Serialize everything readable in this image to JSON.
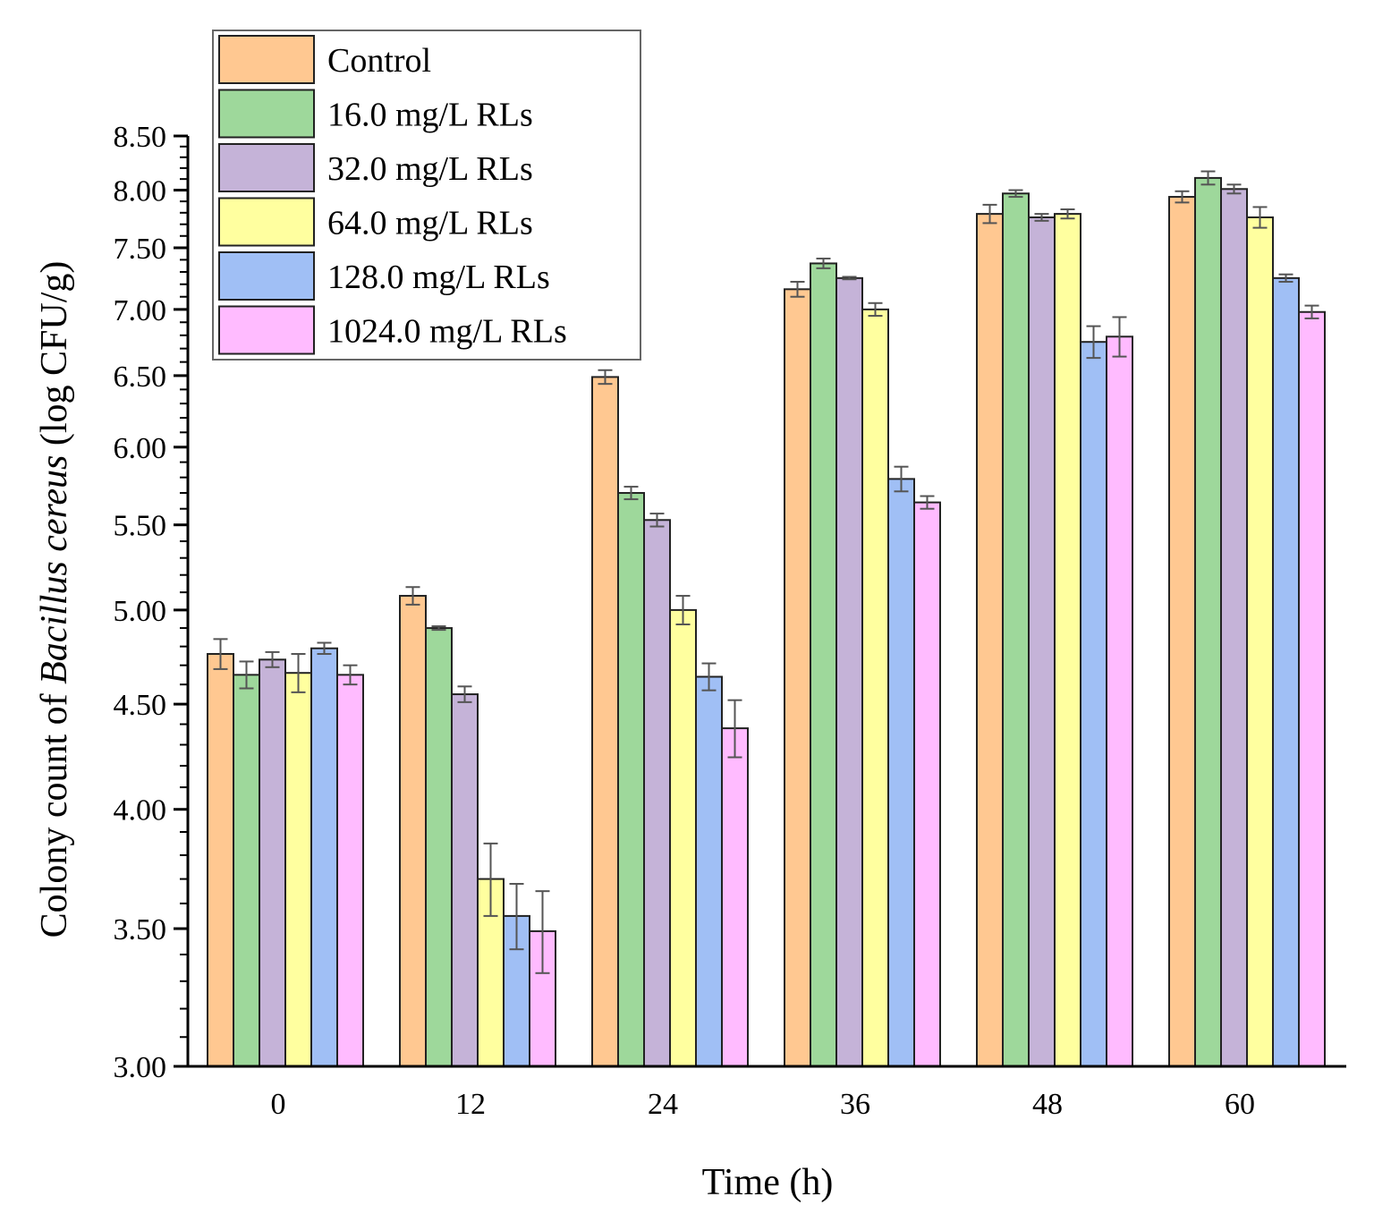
{
  "chart_data": {
    "type": "bar",
    "xlabel": "Time (h)",
    "ylabel_parts": [
      "Colony count of ",
      "Bacillus cereus",
      " (log CFU/g)"
    ],
    "categories": [
      "0",
      "12",
      "24",
      "36",
      "48",
      "60"
    ],
    "y_ticks": [
      "3.00",
      "3.50",
      "4.00",
      "4.50",
      "5.00",
      "5.50",
      "6.00",
      "6.50",
      "7.00",
      "7.50",
      "8.00",
      "8.50"
    ],
    "ylim": [
      3.0,
      8.5
    ],
    "y_scale": "log",
    "legend_position": "top-left",
    "grid": false,
    "series": [
      {
        "name": "Control",
        "color": "#FFC891",
        "values": [
          4.76,
          5.08,
          6.49,
          7.16,
          7.79,
          7.94
        ],
        "errors": [
          0.08,
          0.05,
          0.05,
          0.06,
          0.08,
          0.05
        ]
      },
      {
        "name": "16.0 mg/L RLs",
        "color": "#9ED89B",
        "values": [
          4.65,
          4.9,
          5.7,
          7.37,
          7.97,
          8.11
        ],
        "errors": [
          0.07,
          0.01,
          0.04,
          0.04,
          0.03,
          0.06
        ]
      },
      {
        "name": "32.0 mg/L RLs",
        "color": "#C5B3D8",
        "values": [
          4.73,
          4.55,
          5.53,
          7.25,
          7.76,
          8.01
        ],
        "errors": [
          0.04,
          0.04,
          0.04,
          0.01,
          0.03,
          0.04
        ]
      },
      {
        "name": "64.0 mg/L RLs",
        "color": "#FFFF9F",
        "values": [
          4.66,
          3.7,
          5.0,
          7.0,
          7.79,
          7.76
        ],
        "errors": [
          0.1,
          0.15,
          0.08,
          0.05,
          0.04,
          0.09
        ]
      },
      {
        "name": "128.0 mg/L RLs",
        "color": "#A0BFF5",
        "values": [
          4.79,
          3.55,
          4.64,
          5.79,
          6.75,
          7.25
        ],
        "errors": [
          0.03,
          0.13,
          0.07,
          0.08,
          0.12,
          0.03
        ]
      },
      {
        "name": "1024.0 mg/L RLs",
        "color": "#FFBBFF",
        "values": [
          4.65,
          3.49,
          4.38,
          5.64,
          6.79,
          6.98
        ],
        "errors": [
          0.05,
          0.16,
          0.14,
          0.04,
          0.15,
          0.05
        ]
      }
    ]
  }
}
